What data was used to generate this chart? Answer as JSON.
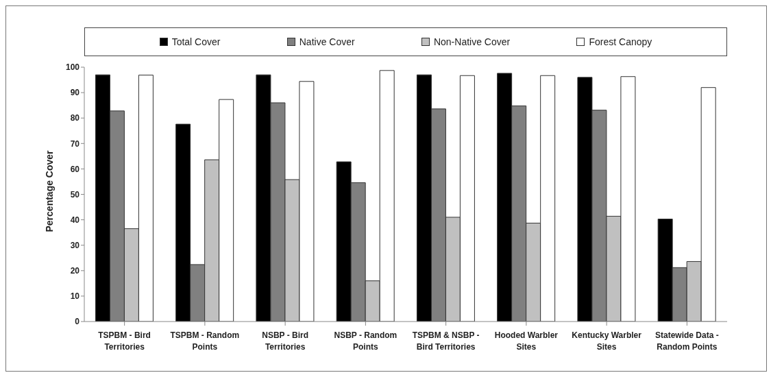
{
  "chart_data": {
    "type": "bar",
    "ylabel": "Percentage Cover",
    "categories": [
      "TSPBM - Bird Territories",
      "TSPBM - Random Points",
      "NSBP - Bird Territories",
      "NSBP - Random Points",
      "TSPBM & NSBP - Bird Territories",
      "Hooded Warbler Sites",
      "Kentucky Warbler Sites",
      "Statewide Data - Random Points"
    ],
    "series": [
      {
        "name": "Total Cover",
        "color": "#000000",
        "values": [
          97,
          77.6,
          97,
          62.8,
          97,
          97.6,
          96,
          40.3
        ]
      },
      {
        "name": "Native Cover",
        "color": "#808080",
        "values": [
          82.8,
          22.4,
          86,
          54.6,
          83.6,
          84.8,
          83.1,
          21.2
        ]
      },
      {
        "name": "Non-Native Cover",
        "color": "#c0c0c0",
        "values": [
          36.5,
          63.6,
          55.8,
          16,
          41,
          38.7,
          41.4,
          23.6
        ]
      },
      {
        "name": "Forest Canopy",
        "color": "#ffffff",
        "values": [
          96.9,
          87.3,
          94.4,
          98.7,
          96.7,
          96.7,
          96.3,
          92
        ]
      }
    ],
    "ylim": [
      0,
      100
    ],
    "yticks": [
      0,
      10,
      20,
      30,
      40,
      50,
      60,
      70,
      80,
      90,
      100
    ],
    "grid": false,
    "legend": "top"
  }
}
